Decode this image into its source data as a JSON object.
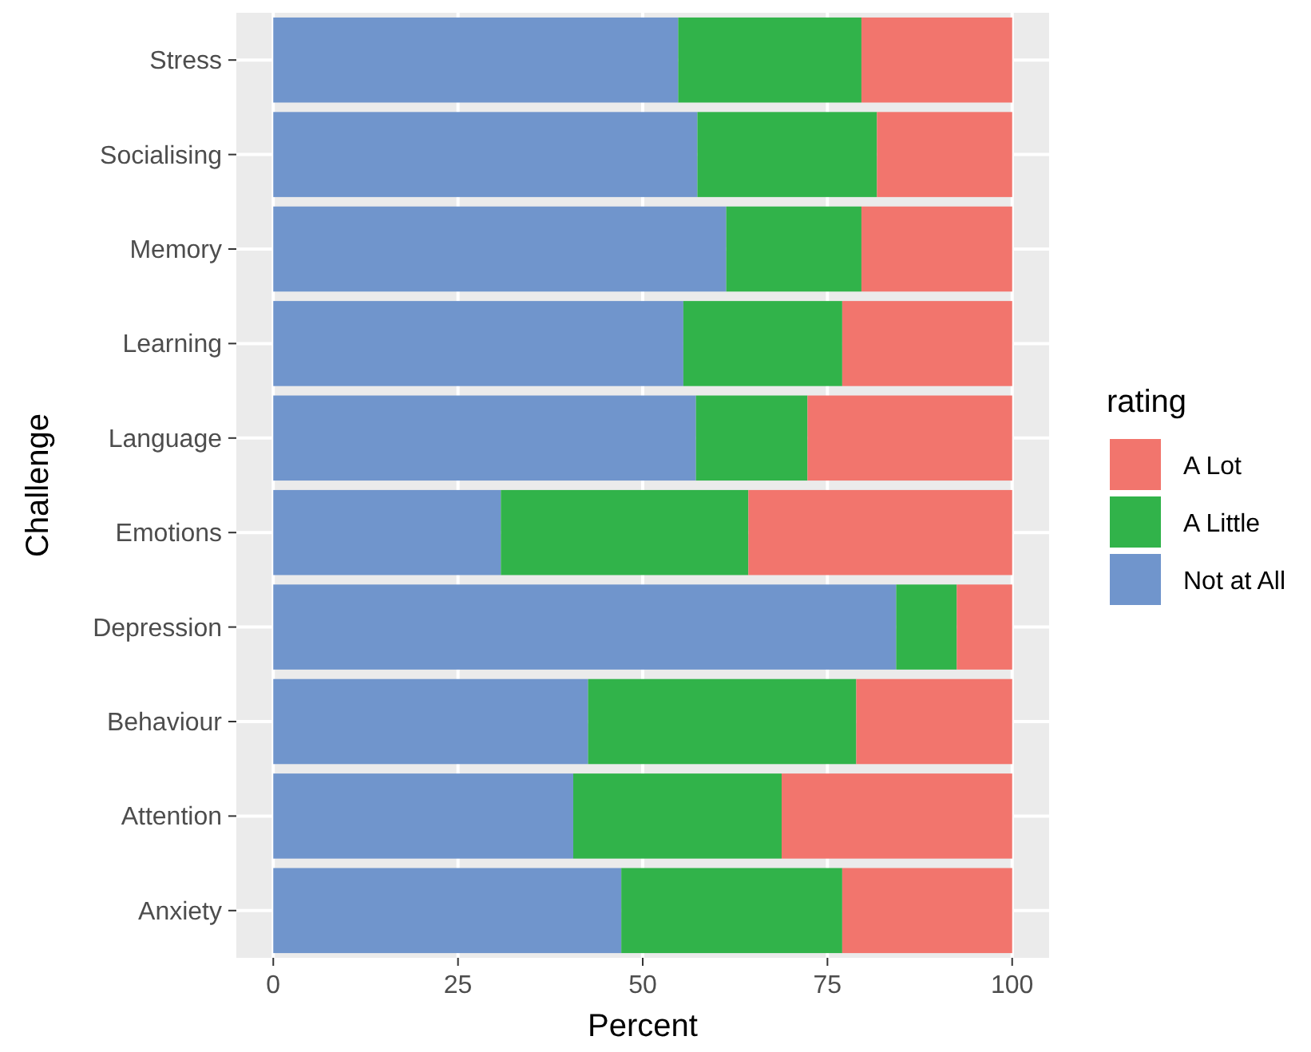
{
  "chart_data": {
    "type": "bar",
    "orientation": "horizontal",
    "stacked": true,
    "xlabel": "Percent",
    "ylabel": "Challenge",
    "legend_title": "rating",
    "legend": "right",
    "grid": true,
    "categories": [
      "Stress",
      "Socialising",
      "Memory",
      "Learning",
      "Language",
      "Emotions",
      "Depression",
      "Behaviour",
      "Attention",
      "Anxiety"
    ],
    "series": [
      {
        "name": "Not at All",
        "color": "#7095cc",
        "values": [
          54.8,
          57.4,
          61.3,
          55.5,
          57.2,
          30.8,
          84.3,
          42.6,
          40.6,
          47.1
        ]
      },
      {
        "name": "A Little",
        "color": "#31b34a",
        "values": [
          24.8,
          24.3,
          18.3,
          21.5,
          15.1,
          33.5,
          8.2,
          36.3,
          28.2,
          29.9
        ]
      },
      {
        "name": "A Lot",
        "color": "#f2756d",
        "values": [
          20.4,
          18.3,
          20.4,
          23.0,
          27.7,
          35.7,
          7.5,
          21.1,
          31.2,
          23.0
        ]
      }
    ],
    "xlim": [
      -5,
      105
    ],
    "xticks": [
      0,
      25,
      50,
      75,
      100
    ]
  }
}
